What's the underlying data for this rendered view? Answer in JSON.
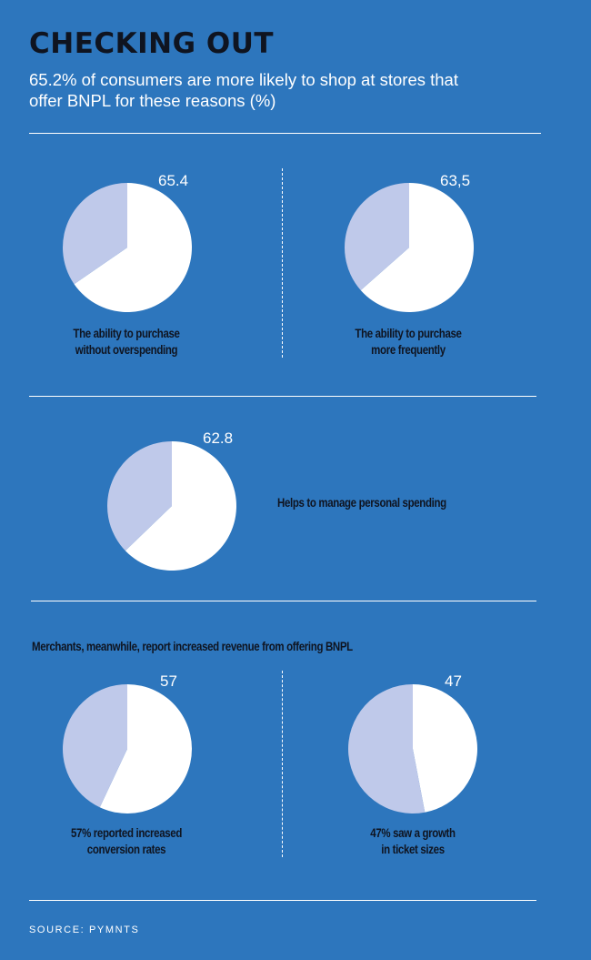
{
  "title": "CHECKING OUT",
  "subtitle": "65.2% of consumers are more likely to shop at stores that offer BNPL for these reasons (%)",
  "merchant_note": "Merchants, meanwhile, report increased revenue from offering BNPL",
  "source": "SOURCE: PYMNTS",
  "colors": {
    "background": "#2d76bd",
    "slice_primary": "#ffffff",
    "slice_rest": "#bfc9ea",
    "label_text": "#0f1420"
  },
  "chart_data": [
    {
      "type": "pie",
      "value_label": "65.4",
      "slices": [
        {
          "value": 65.4
        },
        {
          "value": 34.6
        }
      ],
      "caption": [
        "The ability to purchase",
        "without overspending"
      ]
    },
    {
      "type": "pie",
      "value_label": "63,5",
      "slices": [
        {
          "value": 63.5
        },
        {
          "value": 36.5
        }
      ],
      "caption": [
        "The ability to purchase",
        "more frequently"
      ]
    },
    {
      "type": "pie",
      "value_label": "62.8",
      "slices": [
        {
          "value": 62.8
        },
        {
          "value": 37.2
        }
      ],
      "caption": [
        "Helps to manage personal spending"
      ]
    },
    {
      "type": "pie",
      "value_label": "57",
      "slices": [
        {
          "value": 57
        },
        {
          "value": 43
        }
      ],
      "caption": [
        "57% reported increased",
        "conversion rates"
      ]
    },
    {
      "type": "pie",
      "value_label": "47",
      "slices": [
        {
          "value": 47
        },
        {
          "value": 53
        }
      ],
      "caption": [
        "47% saw a growth",
        "in ticket sizes"
      ]
    }
  ]
}
